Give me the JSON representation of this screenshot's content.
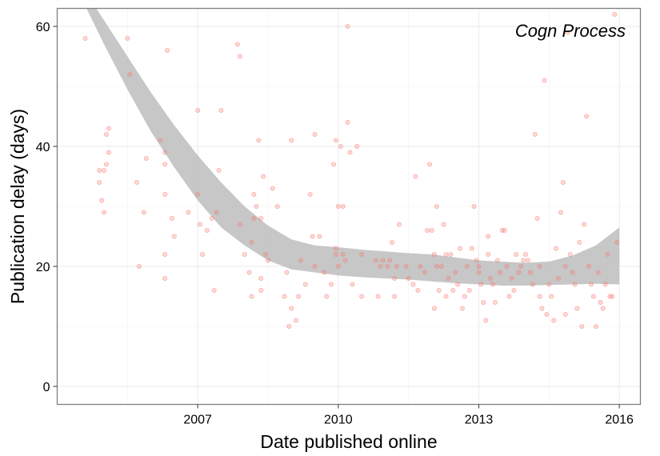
{
  "chart_data": {
    "type": "scatter",
    "title": "",
    "annotation": "Cogn Process",
    "xlabel": "Date published online",
    "ylabel": "Publication delay (days)",
    "xlim": [
      2004.0,
      2016.45
    ],
    "ylim": [
      -3,
      63
    ],
    "x_ticks": [
      2007,
      2010,
      2013,
      2016
    ],
    "x_tick_labels": [
      "2007",
      "2010",
      "2013",
      "2016"
    ],
    "y_ticks": [
      0,
      20,
      40,
      60
    ],
    "y_tick_labels": [
      "0",
      "20",
      "40",
      "60"
    ],
    "grid": true,
    "legend": "none",
    "colors": {
      "points": "#f8766d",
      "band": "#bdbdbd",
      "grid_major": "#ebebeb",
      "grid_minor": "#f5f5f5",
      "panel_border": "#7f7f7f"
    },
    "series": [
      {
        "type": "ribbon",
        "x": [
          2004.5,
          2005.0,
          2005.5,
          2006.0,
          2006.5,
          2007.0,
          2007.5,
          2008.0,
          2008.5,
          2009.0,
          2009.5,
          2010.0,
          2010.5,
          2011.0,
          2011.5,
          2012.0,
          2012.5,
          2013.0,
          2013.5,
          2014.0,
          2014.5,
          2015.0,
          2015.5,
          2016.0
        ],
        "lower": [
          65.0,
          57.0,
          49.5,
          42.5,
          36.5,
          31.0,
          26.5,
          23.5,
          21.0,
          19.5,
          19.0,
          18.5,
          18.2,
          18.0,
          17.8,
          17.5,
          17.2,
          17.0,
          16.8,
          16.8,
          16.9,
          17.0,
          17.1,
          17.0
        ],
        "upper": [
          67.0,
          61.0,
          55.0,
          49.0,
          43.5,
          38.5,
          34.0,
          30.0,
          26.8,
          24.5,
          23.5,
          23.2,
          22.8,
          22.5,
          22.2,
          22.0,
          21.5,
          21.0,
          20.8,
          20.6,
          20.8,
          21.8,
          23.5,
          26.5
        ]
      },
      {
        "type": "scatter",
        "points": [
          [
            2004.6,
            58
          ],
          [
            2004.9,
            34
          ],
          [
            2004.95,
            31
          ],
          [
            2005.0,
            29
          ],
          [
            2004.9,
            36
          ],
          [
            2005.0,
            36
          ],
          [
            2005.05,
            37
          ],
          [
            2005.1,
            39
          ],
          [
            2005.05,
            42
          ],
          [
            2005.1,
            43
          ],
          [
            2005.5,
            58
          ],
          [
            2005.55,
            52
          ],
          [
            2005.7,
            34
          ],
          [
            2005.75,
            20
          ],
          [
            2005.85,
            29
          ],
          [
            2005.9,
            38
          ],
          [
            2006.2,
            41
          ],
          [
            2006.3,
            39
          ],
          [
            2006.3,
            37
          ],
          [
            2006.3,
            32
          ],
          [
            2006.3,
            22
          ],
          [
            2006.3,
            18
          ],
          [
            2006.35,
            56
          ],
          [
            2006.45,
            28
          ],
          [
            2006.5,
            25
          ],
          [
            2006.8,
            29
          ],
          [
            2007.0,
            46
          ],
          [
            2007.0,
            32
          ],
          [
            2007.05,
            27
          ],
          [
            2007.1,
            22
          ],
          [
            2007.2,
            26
          ],
          [
            2007.3,
            28
          ],
          [
            2007.35,
            16
          ],
          [
            2007.4,
            29
          ],
          [
            2007.45,
            36
          ],
          [
            2007.5,
            46
          ],
          [
            2007.85,
            57
          ],
          [
            2007.9,
            55
          ],
          [
            2007.9,
            27
          ],
          [
            2008.0,
            22
          ],
          [
            2008.1,
            19
          ],
          [
            2008.15,
            15
          ],
          [
            2008.15,
            24
          ],
          [
            2008.2,
            28
          ],
          [
            2008.2,
            32
          ],
          [
            2008.25,
            30
          ],
          [
            2008.3,
            41
          ],
          [
            2008.35,
            28
          ],
          [
            2008.35,
            16
          ],
          [
            2008.35,
            18
          ],
          [
            2008.4,
            35
          ],
          [
            2008.45,
            22
          ],
          [
            2008.5,
            21
          ],
          [
            2008.6,
            33
          ],
          [
            2008.7,
            30
          ],
          [
            2008.85,
            15
          ],
          [
            2008.9,
            19
          ],
          [
            2008.95,
            10
          ],
          [
            2009.0,
            41
          ],
          [
            2009.0,
            13
          ],
          [
            2009.1,
            11
          ],
          [
            2009.15,
            15
          ],
          [
            2009.2,
            21
          ],
          [
            2009.3,
            17
          ],
          [
            2009.4,
            32
          ],
          [
            2009.45,
            25
          ],
          [
            2009.5,
            42
          ],
          [
            2009.5,
            20
          ],
          [
            2009.6,
            25
          ],
          [
            2009.7,
            19
          ],
          [
            2009.75,
            15
          ],
          [
            2009.85,
            17
          ],
          [
            2009.9,
            37
          ],
          [
            2009.95,
            41
          ],
          [
            2009.95,
            23
          ],
          [
            2009.95,
            22
          ],
          [
            2010.0,
            20
          ],
          [
            2010.0,
            30
          ],
          [
            2010.05,
            40
          ],
          [
            2010.1,
            30
          ],
          [
            2010.1,
            22
          ],
          [
            2010.15,
            21
          ],
          [
            2010.2,
            44
          ],
          [
            2010.2,
            60
          ],
          [
            2010.25,
            39
          ],
          [
            2010.3,
            17
          ],
          [
            2010.4,
            40
          ],
          [
            2010.5,
            22
          ],
          [
            2010.5,
            15
          ],
          [
            2010.8,
            21
          ],
          [
            2010.85,
            15
          ],
          [
            2010.9,
            20
          ],
          [
            2010.95,
            21
          ],
          [
            2011.05,
            20
          ],
          [
            2011.1,
            21
          ],
          [
            2011.15,
            24
          ],
          [
            2011.2,
            18
          ],
          [
            2011.2,
            15
          ],
          [
            2011.25,
            20
          ],
          [
            2011.3,
            27
          ],
          [
            2011.45,
            20
          ],
          [
            2011.5,
            18
          ],
          [
            2011.6,
            17
          ],
          [
            2011.65,
            35
          ],
          [
            2011.7,
            16
          ],
          [
            2011.75,
            20
          ],
          [
            2011.85,
            19
          ],
          [
            2011.9,
            26
          ],
          [
            2011.95,
            37
          ],
          [
            2012.0,
            26
          ],
          [
            2012.05,
            22
          ],
          [
            2012.05,
            13
          ],
          [
            2012.1,
            30
          ],
          [
            2012.1,
            20
          ],
          [
            2012.15,
            16
          ],
          [
            2012.2,
            20
          ],
          [
            2012.25,
            27
          ],
          [
            2012.3,
            22
          ],
          [
            2012.3,
            15
          ],
          [
            2012.35,
            18
          ],
          [
            2012.4,
            22
          ],
          [
            2012.45,
            16
          ],
          [
            2012.5,
            19
          ],
          [
            2012.55,
            17
          ],
          [
            2012.6,
            23
          ],
          [
            2012.65,
            13
          ],
          [
            2012.7,
            15
          ],
          [
            2012.75,
            20
          ],
          [
            2012.8,
            16
          ],
          [
            2012.85,
            23
          ],
          [
            2012.9,
            30
          ],
          [
            2012.95,
            21
          ],
          [
            2013.0,
            20
          ],
          [
            2013.0,
            19
          ],
          [
            2013.05,
            17
          ],
          [
            2013.1,
            14
          ],
          [
            2013.15,
            11
          ],
          [
            2013.2,
            25
          ],
          [
            2013.2,
            22
          ],
          [
            2013.25,
            18
          ],
          [
            2013.3,
            17
          ],
          [
            2013.35,
            14
          ],
          [
            2013.4,
            21
          ],
          [
            2013.45,
            19
          ],
          [
            2013.5,
            26
          ],
          [
            2013.55,
            26
          ],
          [
            2013.6,
            20
          ],
          [
            2013.65,
            15
          ],
          [
            2013.7,
            18
          ],
          [
            2013.75,
            16
          ],
          [
            2013.8,
            22
          ],
          [
            2013.85,
            19
          ],
          [
            2013.9,
            20
          ],
          [
            2013.95,
            21
          ],
          [
            2014.0,
            22
          ],
          [
            2014.05,
            21
          ],
          [
            2014.1,
            19
          ],
          [
            2014.15,
            17
          ],
          [
            2014.2,
            42
          ],
          [
            2014.25,
            28
          ],
          [
            2014.3,
            20
          ],
          [
            2014.3,
            15
          ],
          [
            2014.35,
            13
          ],
          [
            2014.4,
            51
          ],
          [
            2014.45,
            12
          ],
          [
            2014.5,
            17
          ],
          [
            2014.55,
            15
          ],
          [
            2014.6,
            11
          ],
          [
            2014.65,
            23
          ],
          [
            2014.7,
            18
          ],
          [
            2014.75,
            29
          ],
          [
            2014.8,
            34
          ],
          [
            2014.85,
            20
          ],
          [
            2014.85,
            12
          ],
          [
            2014.9,
            59
          ],
          [
            2014.95,
            22
          ],
          [
            2015.0,
            19
          ],
          [
            2015.05,
            17
          ],
          [
            2015.1,
            13
          ],
          [
            2015.15,
            24
          ],
          [
            2015.2,
            10
          ],
          [
            2015.25,
            27
          ],
          [
            2015.3,
            45
          ],
          [
            2015.35,
            20
          ],
          [
            2015.4,
            17
          ],
          [
            2015.45,
            15
          ],
          [
            2015.5,
            10
          ],
          [
            2015.55,
            19
          ],
          [
            2015.6,
            14
          ],
          [
            2015.65,
            13
          ],
          [
            2015.7,
            17
          ],
          [
            2015.75,
            22
          ],
          [
            2015.8,
            15
          ],
          [
            2015.85,
            15
          ],
          [
            2015.9,
            62
          ],
          [
            2015.95,
            24
          ]
        ]
      }
    ]
  }
}
